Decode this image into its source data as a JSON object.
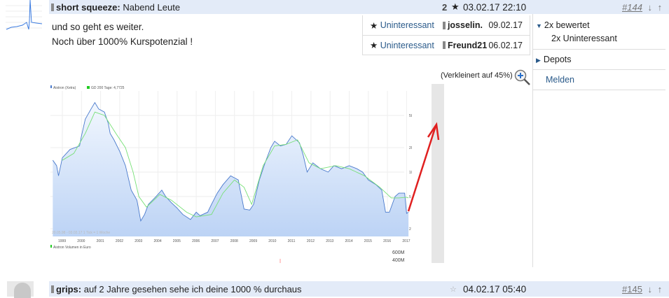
{
  "post1": {
    "author": "short squeeze:",
    "title": "Nabend Leute",
    "rating_count": "2",
    "star": "★",
    "timestamp": "03.02.17 22:10",
    "number": "#144",
    "down": "↓",
    "up": "↑",
    "body": [
      "und so geht es weiter.",
      "Noch über 1000% Kurspotenzial !"
    ],
    "ratings": [
      {
        "star": "★",
        "label": "Uninteressant",
        "user": "josselin.",
        "date": "09.02.17"
      },
      {
        "star": "★",
        "label": "Uninteressant",
        "user": "Freund21",
        "date": "06.02.17"
      }
    ],
    "image_note": "(Verkleinert auf 45%)",
    "sidebar": {
      "rated": "2x bewertet",
      "rated_detail": "2x Uninteressant",
      "depots": "Depots",
      "report": "Melden"
    }
  },
  "chart_image": {
    "legend_price": "Aixtron (Xetra)",
    "legend_ma": "GD 200 Tage: 4,7725",
    "range_note": "20.05.98 - 03.02.17   1 Tick = 1 Woche",
    "volume_label": "Aixtron Volumen in Euro",
    "years": [
      "1999",
      "2000",
      "2001",
      "2002",
      "2003",
      "2004",
      "2005",
      "2006",
      "2007",
      "2008",
      "2009",
      "2010",
      "2011",
      "2012",
      "2013",
      "2014",
      "2015",
      "2016",
      "2017"
    ],
    "y_ticks": [
      "50",
      "20",
      "10",
      "5",
      "2"
    ],
    "vol_ticks": [
      "600M",
      "400M"
    ],
    "colors": {
      "price": "#4a7acc",
      "ma": "#66dd66",
      "fill": "#c8dbf7",
      "arrow": "#e02020"
    }
  },
  "post2": {
    "author": "grips:",
    "title": "auf 2 Jahre gesehen sehe ich deine 1000 % durchaus",
    "star": "☆",
    "timestamp": "04.02.17 05:40",
    "number": "#145",
    "down": "↓",
    "up": "↑"
  }
}
